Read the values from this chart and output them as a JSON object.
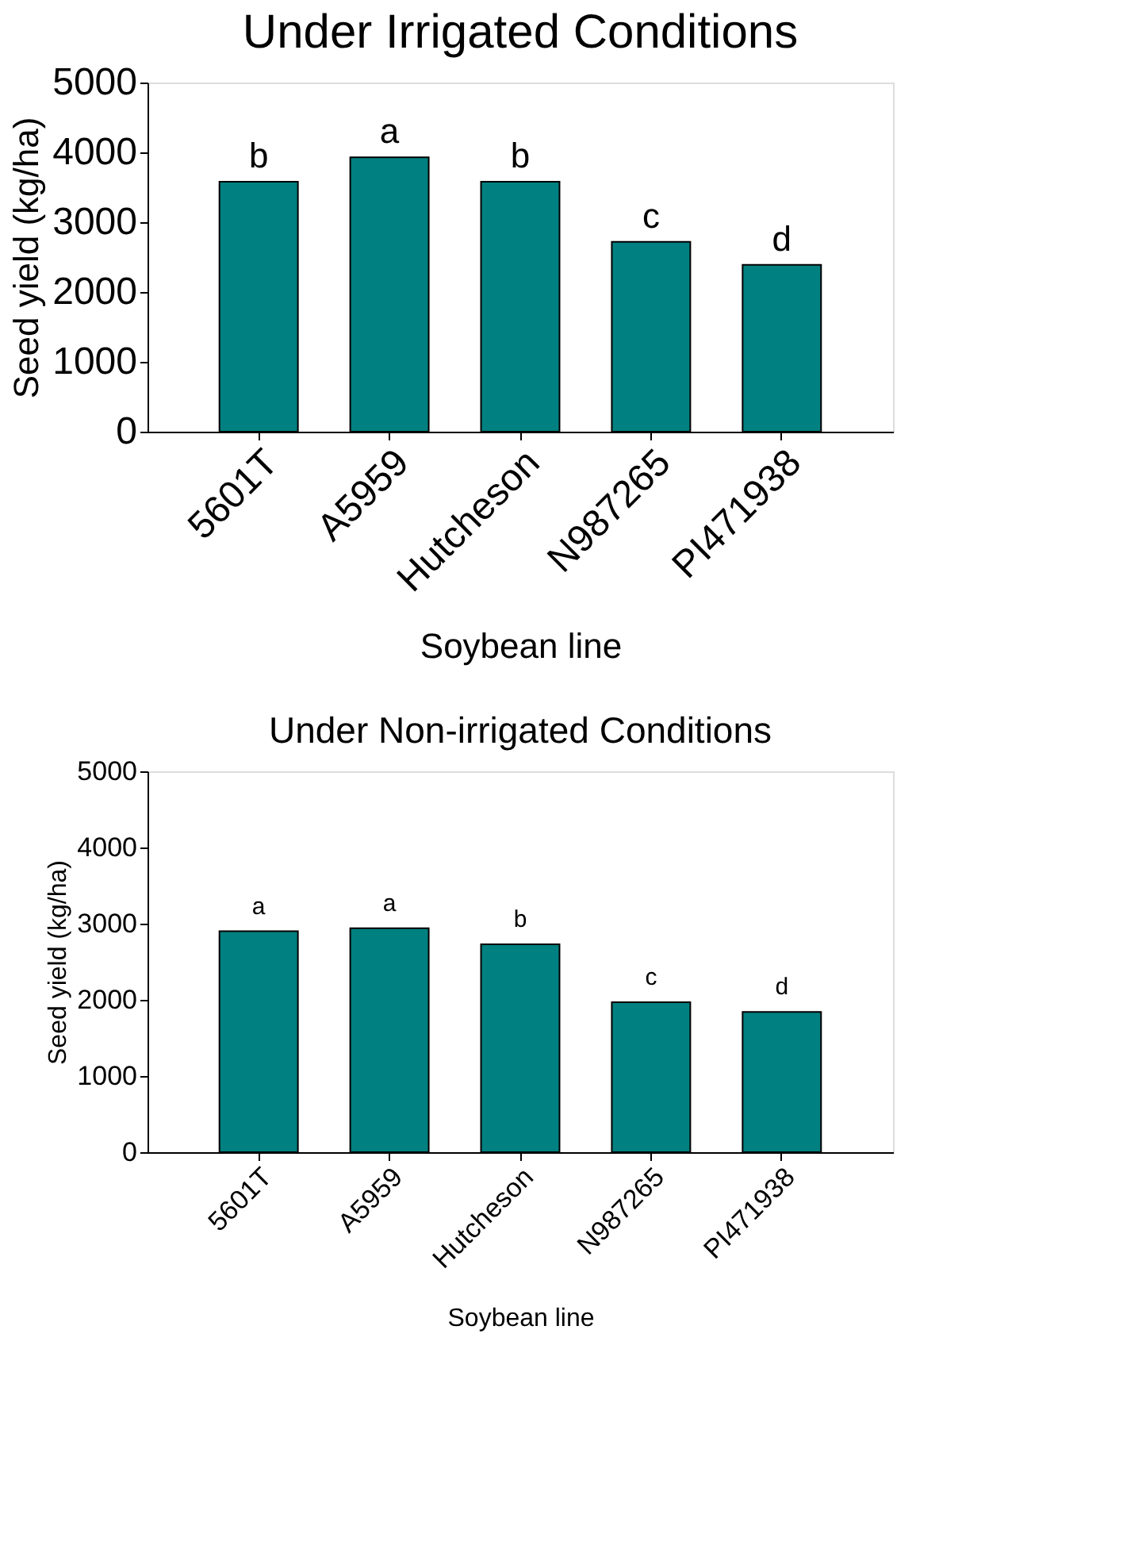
{
  "chart_data": [
    {
      "type": "bar",
      "title": "Under Irrigated Conditions",
      "xlabel": "Soybean line",
      "ylabel": "Seed yield (kg/ha)",
      "categories": [
        "5601T",
        "A5959",
        "Hutcheson",
        "N987265",
        "PI471938"
      ],
      "values": [
        3580,
        3930,
        3580,
        2720,
        2390
      ],
      "color": "#008080",
      "ylim": [
        0,
        5000
      ],
      "yticks": [
        0,
        1000,
        2000,
        3000,
        4000,
        5000
      ],
      "grid": false,
      "annotations": [
        {
          "text": "b",
          "x": "5601T",
          "y": 3580
        },
        {
          "text": "a",
          "x": "A5959",
          "y": 3930
        },
        {
          "text": "b",
          "x": "Hutcheson",
          "y": 3580
        },
        {
          "text": "c",
          "x": "N987265",
          "y": 2720
        },
        {
          "text": "d",
          "x": "PI471938",
          "y": 2390
        }
      ]
    },
    {
      "type": "bar",
      "title": "Under Non-irrigated Conditions",
      "xlabel": "Soybean line",
      "ylabel": "Seed yield (kg/ha)",
      "categories": [
        "5601T",
        "A5959",
        "Hutcheson",
        "N987265",
        "PI471938"
      ],
      "values": [
        2900,
        2940,
        2730,
        1970,
        1840
      ],
      "color": "#008080",
      "ylim": [
        0,
        5000
      ],
      "yticks": [
        0,
        1000,
        2000,
        3000,
        4000,
        5000
      ],
      "grid": false,
      "annotations": [
        {
          "text": "a",
          "x": "5601T",
          "y": 2900
        },
        {
          "text": "a",
          "x": "A5959",
          "y": 2940
        },
        {
          "text": "b",
          "x": "Hutcheson",
          "y": 2730
        },
        {
          "text": "c",
          "x": "N987265",
          "y": 1970
        },
        {
          "text": "d",
          "x": "PI471938",
          "y": 1840
        }
      ]
    }
  ]
}
